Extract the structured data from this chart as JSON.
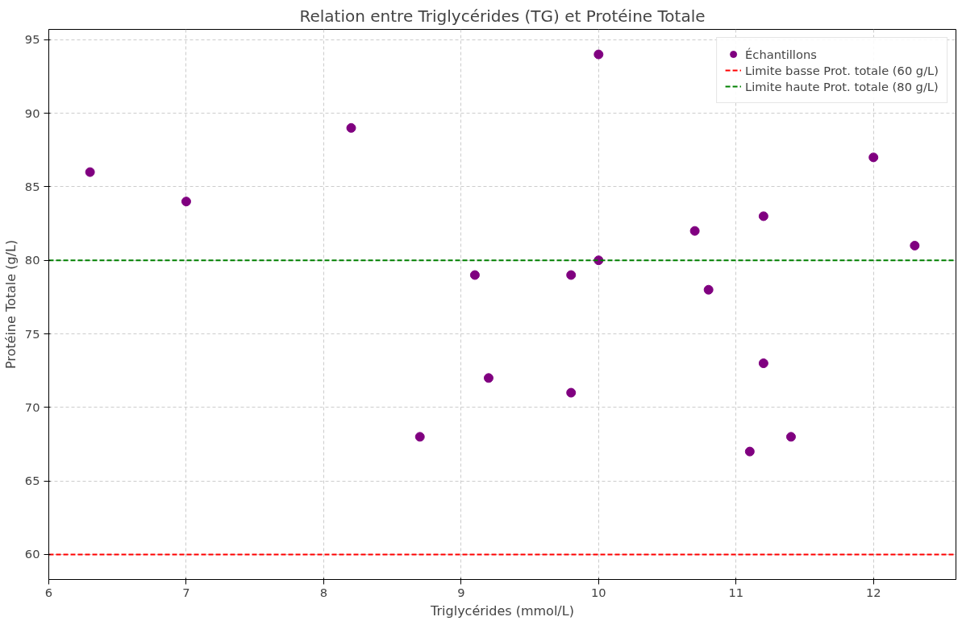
{
  "chart_data": {
    "type": "scatter",
    "title": "Relation entre Triglycérides (TG) et Protéine Totale",
    "xlabel": "Triglycérides (mmol/L)",
    "ylabel": "Protéine Totale (g/L)",
    "x": [
      6.3,
      7,
      8.2,
      8.7,
      9.1,
      9.2,
      9.8,
      9.8,
      10,
      10,
      10.7,
      10.8,
      11.1,
      11.2,
      11.2,
      11.4,
      12,
      12.3
    ],
    "series": [
      {
        "name": "Échantillons",
        "color": "#800080",
        "values": [
          86,
          84,
          89,
          68,
          79,
          72,
          79,
          71,
          94,
          80,
          82,
          78,
          67,
          83,
          73,
          68,
          87,
          81
        ]
      }
    ],
    "ref_lines": [
      {
        "axis": "y",
        "value": 60,
        "label": "Limite basse Prot. totale (60 g/L)",
        "color": "#ff0000",
        "line_style": "dashed"
      },
      {
        "axis": "y",
        "value": 80,
        "label": "Limite haute Prot. totale (80 g/L)",
        "color": "#008000",
        "line_style": "dashed"
      }
    ],
    "xlim": [
      6,
      12.6
    ],
    "ylim": [
      58.3,
      95.7
    ],
    "xticks": [
      6,
      7,
      8,
      9,
      10,
      11,
      12
    ],
    "yticks": [
      60,
      65,
      70,
      75,
      80,
      85,
      90,
      95
    ],
    "grid": true,
    "legend": "top right",
    "marker": "circle"
  }
}
